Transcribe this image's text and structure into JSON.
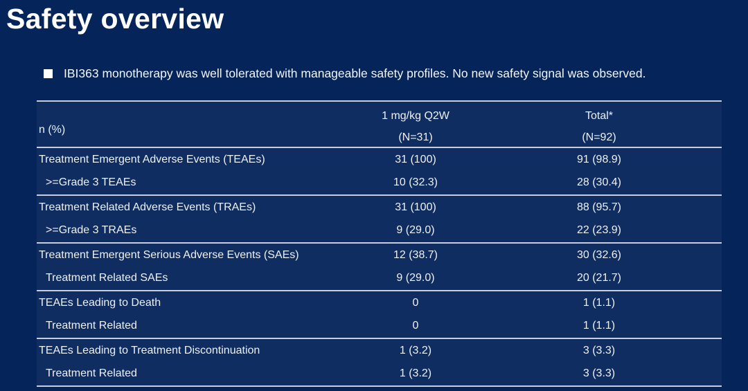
{
  "slide": {
    "title": "Safety overview",
    "bullet_text": "IBI363 monotherapy was well tolerated with manageable safety profiles. No new safety signal was observed."
  },
  "table": {
    "corner_label": "n (%)",
    "columns": [
      {
        "name": "1 mg/kg Q2W",
        "n": "(N=31)"
      },
      {
        "name": "Total*",
        "n": "(N=92)"
      }
    ],
    "groups": [
      {
        "rows": [
          {
            "label": "Treatment Emergent Adverse Events (TEAEs)",
            "values": [
              "31 (100)",
              "91 (98.9)"
            ]
          },
          {
            "label": ">=Grade 3 TEAEs",
            "values": [
              "10 (32.3)",
              "28 (30.4)"
            ]
          }
        ]
      },
      {
        "rows": [
          {
            "label": "Treatment Related Adverse Events (TRAEs)",
            "values": [
              "31 (100)",
              "88 (95.7)"
            ]
          },
          {
            "label": ">=Grade 3 TRAEs",
            "values": [
              "9 (29.0)",
              "22 (23.9)"
            ]
          }
        ]
      },
      {
        "rows": [
          {
            "label": "Treatment Emergent Serious Adverse Events (SAEs)",
            "values": [
              "12 (38.7)",
              "30 (32.6)"
            ]
          },
          {
            "label": "Treatment Related SAEs",
            "values": [
              "9 (29.0)",
              "20 (21.7)"
            ]
          }
        ]
      },
      {
        "rows": [
          {
            "label": "TEAEs Leading to Death",
            "values": [
              "0",
              "1 (1.1)"
            ]
          },
          {
            "label": "Treatment Related",
            "values": [
              "0",
              "1 (1.1)"
            ]
          }
        ]
      },
      {
        "rows": [
          {
            "label": "TEAEs Leading to Treatment Discontinuation",
            "values": [
              "1 (3.2)",
              "3 (3.3)"
            ]
          },
          {
            "label": "Treatment Related",
            "values": [
              "1 (3.2)",
              "3 (3.3)"
            ]
          }
        ]
      }
    ]
  },
  "colors": {
    "background": "#052459",
    "table_band": "rgba(255,255,255,0.045)",
    "rule": "#c8cedb",
    "text": "#eef1f5",
    "title": "#ffffff"
  }
}
